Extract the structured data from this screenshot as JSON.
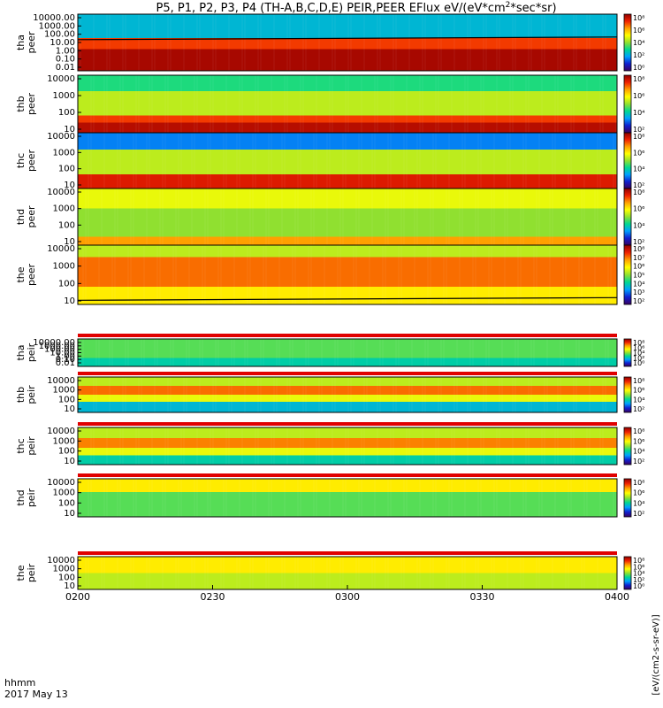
{
  "chart_data": {
    "type": "heatmap",
    "title": "P5, P1, P2, P3, P4 (TH-A,B,C,D,E) PEIR,PEER EFlux eV/(eV*cm",
    "title_sup": "2",
    "title_tail": "*sec*sr)",
    "x_axis": {
      "ticks": [
        "0200",
        "0230",
        "0300",
        "0330",
        "0400"
      ],
      "range_minutes": [
        0,
        120
      ],
      "corner_label": "hhmm",
      "date": "2017 May 13"
    },
    "colorbar_label": "[eV/(cm2-s-sr-eV)]",
    "colormap": [
      "#3a0060",
      "#1020d0",
      "#00a0ff",
      "#00d890",
      "#90e030",
      "#ffff00",
      "#ffa000",
      "#f02000",
      "#900000"
    ],
    "panels": [
      {
        "probe": "tha",
        "species": "peer",
        "yticks": [
          "10000.00",
          "1000.00",
          "100.00",
          "10.00",
          "1.00",
          "0.10",
          "0.01"
        ],
        "cbticks": [
          "10⁸",
          "10⁶",
          "10⁴",
          "10²",
          "10⁰"
        ],
        "bands": [
          [
            0,
            0.42,
            0.3
          ],
          [
            0.42,
            0.62,
            0.85
          ],
          [
            0.62,
            1,
            0.97
          ]
        ],
        "cutoff_line": true
      },
      {
        "probe": "thb",
        "species": "peer",
        "yticks": [
          "10000",
          "1000",
          "100",
          "10"
        ],
        "cbticks": [
          "10⁸",
          "10⁶",
          "10⁴",
          "10²"
        ],
        "bands": [
          [
            0,
            0.28,
            0.4
          ],
          [
            0.28,
            0.7,
            0.55
          ],
          [
            0.7,
            0.82,
            0.85
          ],
          [
            0.82,
            1,
            0.95
          ]
        ],
        "cutoff_line": false
      },
      {
        "probe": "thc",
        "species": "peer",
        "yticks": [
          "10000",
          "1000",
          "100",
          "10"
        ],
        "cbticks": [
          "10⁸",
          "10⁶",
          "10⁴",
          "10²"
        ],
        "bands": [
          [
            0,
            0.3,
            0.22
          ],
          [
            0.3,
            0.75,
            0.55
          ],
          [
            0.75,
            1,
            0.9
          ]
        ],
        "cutoff_line": false
      },
      {
        "probe": "thd",
        "species": "peer",
        "yticks": [
          "10000",
          "1000",
          "100",
          "10"
        ],
        "cbticks": [
          "10⁸",
          "10⁶",
          "10⁴",
          "10²"
        ],
        "bands": [
          [
            0,
            0.35,
            0.6
          ],
          [
            0.35,
            0.85,
            0.5
          ],
          [
            0.85,
            1,
            0.75
          ]
        ],
        "cutoff_line": false
      },
      {
        "probe": "the",
        "species": "peer",
        "yticks": [
          "10000",
          "1000",
          "100",
          "10"
        ],
        "cbticks": [
          "10⁸",
          "10⁷",
          "10⁶",
          "10⁵",
          "10⁴",
          "10³",
          "10²"
        ],
        "bands": [
          [
            0,
            0.2,
            0.55
          ],
          [
            0.2,
            0.7,
            0.8
          ],
          [
            0.7,
            1,
            0.65
          ]
        ],
        "cutoff_line": true
      },
      {
        "probe": "tha",
        "species": "peir",
        "yticks": [
          "10000.00",
          "1000.00",
          "100.00",
          "10.00",
          "1.00",
          "0.10",
          "0.01"
        ],
        "cbticks": [
          "10⁸",
          "10⁶",
          "10⁴",
          "10²",
          "10⁰"
        ],
        "bands": [
          [
            0,
            0.7,
            0.45
          ],
          [
            0.7,
            1,
            0.35
          ]
        ],
        "cutoff_line": false
      },
      {
        "probe": "thb",
        "species": "peir",
        "yticks": [
          "10000",
          "1000",
          "100",
          "10"
        ],
        "cbticks": [
          "10⁸",
          "10⁶",
          "10⁴",
          "10²"
        ],
        "bands": [
          [
            0,
            0.25,
            0.55
          ],
          [
            0.25,
            0.5,
            0.8
          ],
          [
            0.5,
            0.7,
            0.6
          ],
          [
            0.7,
            1,
            0.3
          ]
        ],
        "cutoff_line": false
      },
      {
        "probe": "thc",
        "species": "peir",
        "yticks": [
          "10000",
          "1000",
          "100",
          "10"
        ],
        "cbticks": [
          "10⁸",
          "10⁶",
          "10⁴",
          "10²"
        ],
        "bands": [
          [
            0,
            0.28,
            0.55
          ],
          [
            0.28,
            0.55,
            0.78
          ],
          [
            0.55,
            0.75,
            0.6
          ],
          [
            0.75,
            1,
            0.35
          ]
        ],
        "cutoff_line": false
      },
      {
        "probe": "thd",
        "species": "peir",
        "yticks": [
          "10000",
          "1000",
          "100",
          "10"
        ],
        "cbticks": [
          "10⁸",
          "10⁶",
          "10⁴",
          "10²"
        ],
        "bands": [
          [
            0,
            0.35,
            0.65
          ],
          [
            0.35,
            1,
            0.45
          ]
        ],
        "cutoff_line": false
      },
      {
        "probe": "the",
        "species": "peir",
        "yticks": [
          "10000",
          "1000",
          "100",
          "10"
        ],
        "cbticks": [
          "10⁸",
          "10⁶",
          "10⁴",
          "10²",
          "10⁰"
        ],
        "bands": [
          [
            0,
            0.5,
            0.65
          ],
          [
            0.5,
            1,
            0.55
          ]
        ],
        "cutoff_line": false
      }
    ]
  }
}
